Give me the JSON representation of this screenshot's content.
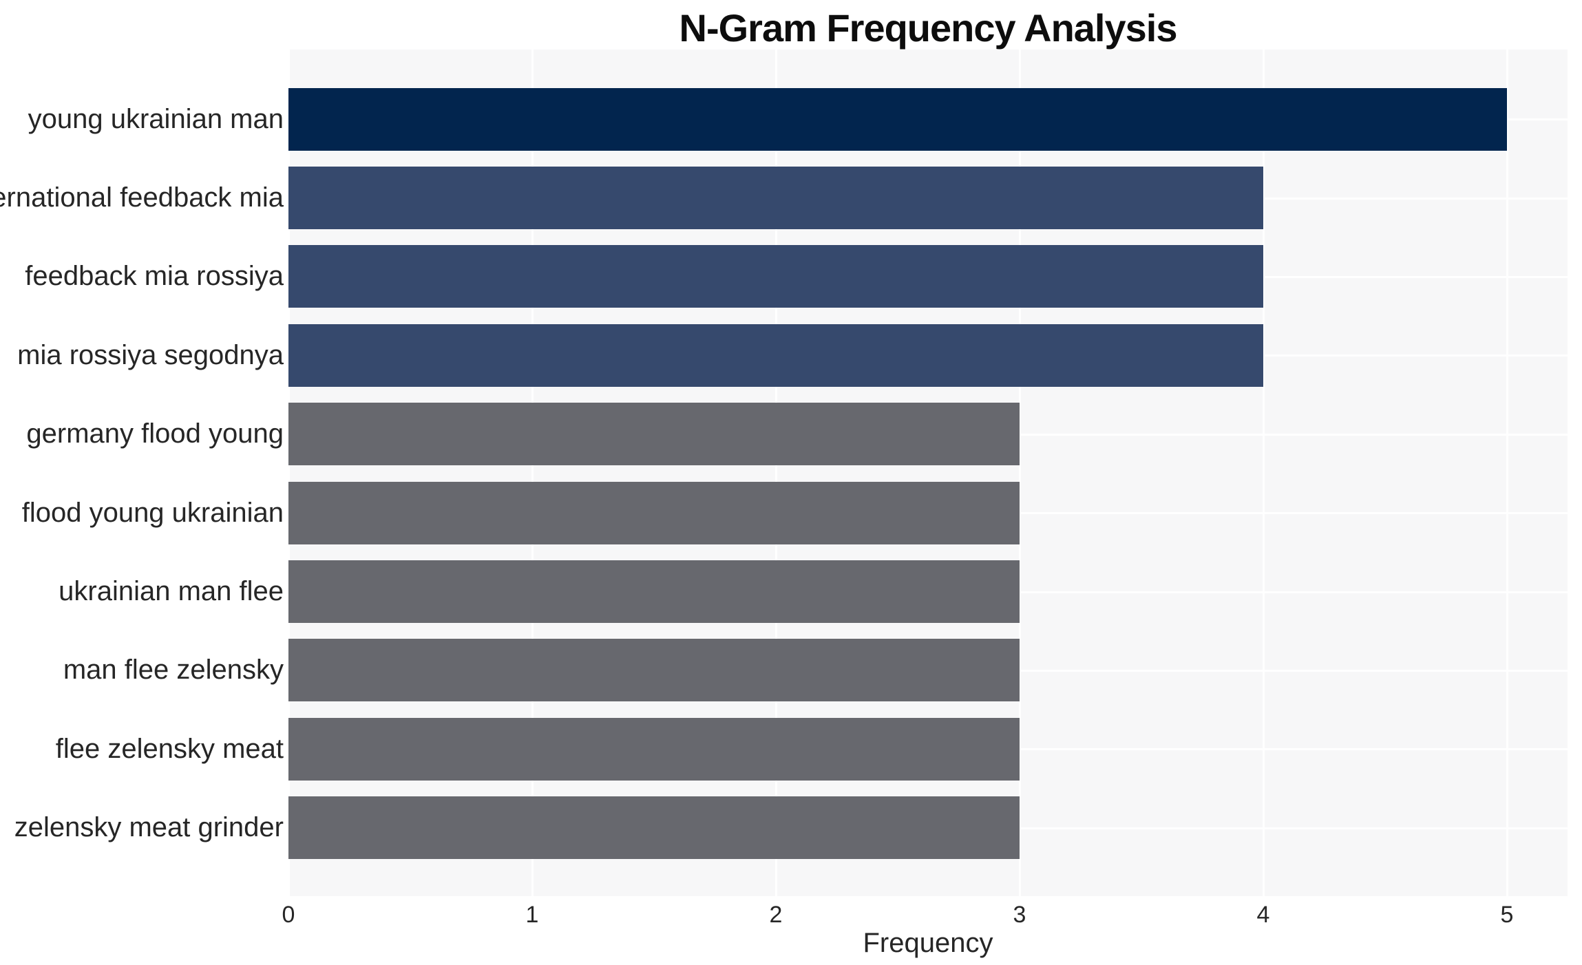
{
  "chart_data": {
    "type": "bar",
    "orientation": "horizontal",
    "title": "N-Gram Frequency Analysis",
    "xlabel": "Frequency",
    "ylabel": "",
    "categories": [
      "young ukrainian man",
      "international feedback mia",
      "feedback mia rossiya",
      "mia rossiya segodnya",
      "germany flood young",
      "flood young ukrainian",
      "ukrainian man flee",
      "man flee zelensky",
      "flee zelensky meat",
      "zelensky meat grinder"
    ],
    "values": [
      5,
      4,
      4,
      4,
      3,
      3,
      3,
      3,
      3,
      3
    ],
    "bar_colors": [
      "#02254e",
      "#36496d",
      "#36496d",
      "#36496d",
      "#67686e",
      "#67686e",
      "#67686e",
      "#67686e",
      "#67686e",
      "#67686e"
    ],
    "xlim": [
      0,
      5
    ],
    "xticks": [
      "0",
      "1",
      "2",
      "3",
      "4",
      "5"
    ],
    "grid": true,
    "legend": false,
    "colors": {
      "plot_background": "#f7f7f8",
      "gridline": "#ffffff",
      "tick_text": "#262626",
      "title_text": "#0d0d0d"
    }
  }
}
